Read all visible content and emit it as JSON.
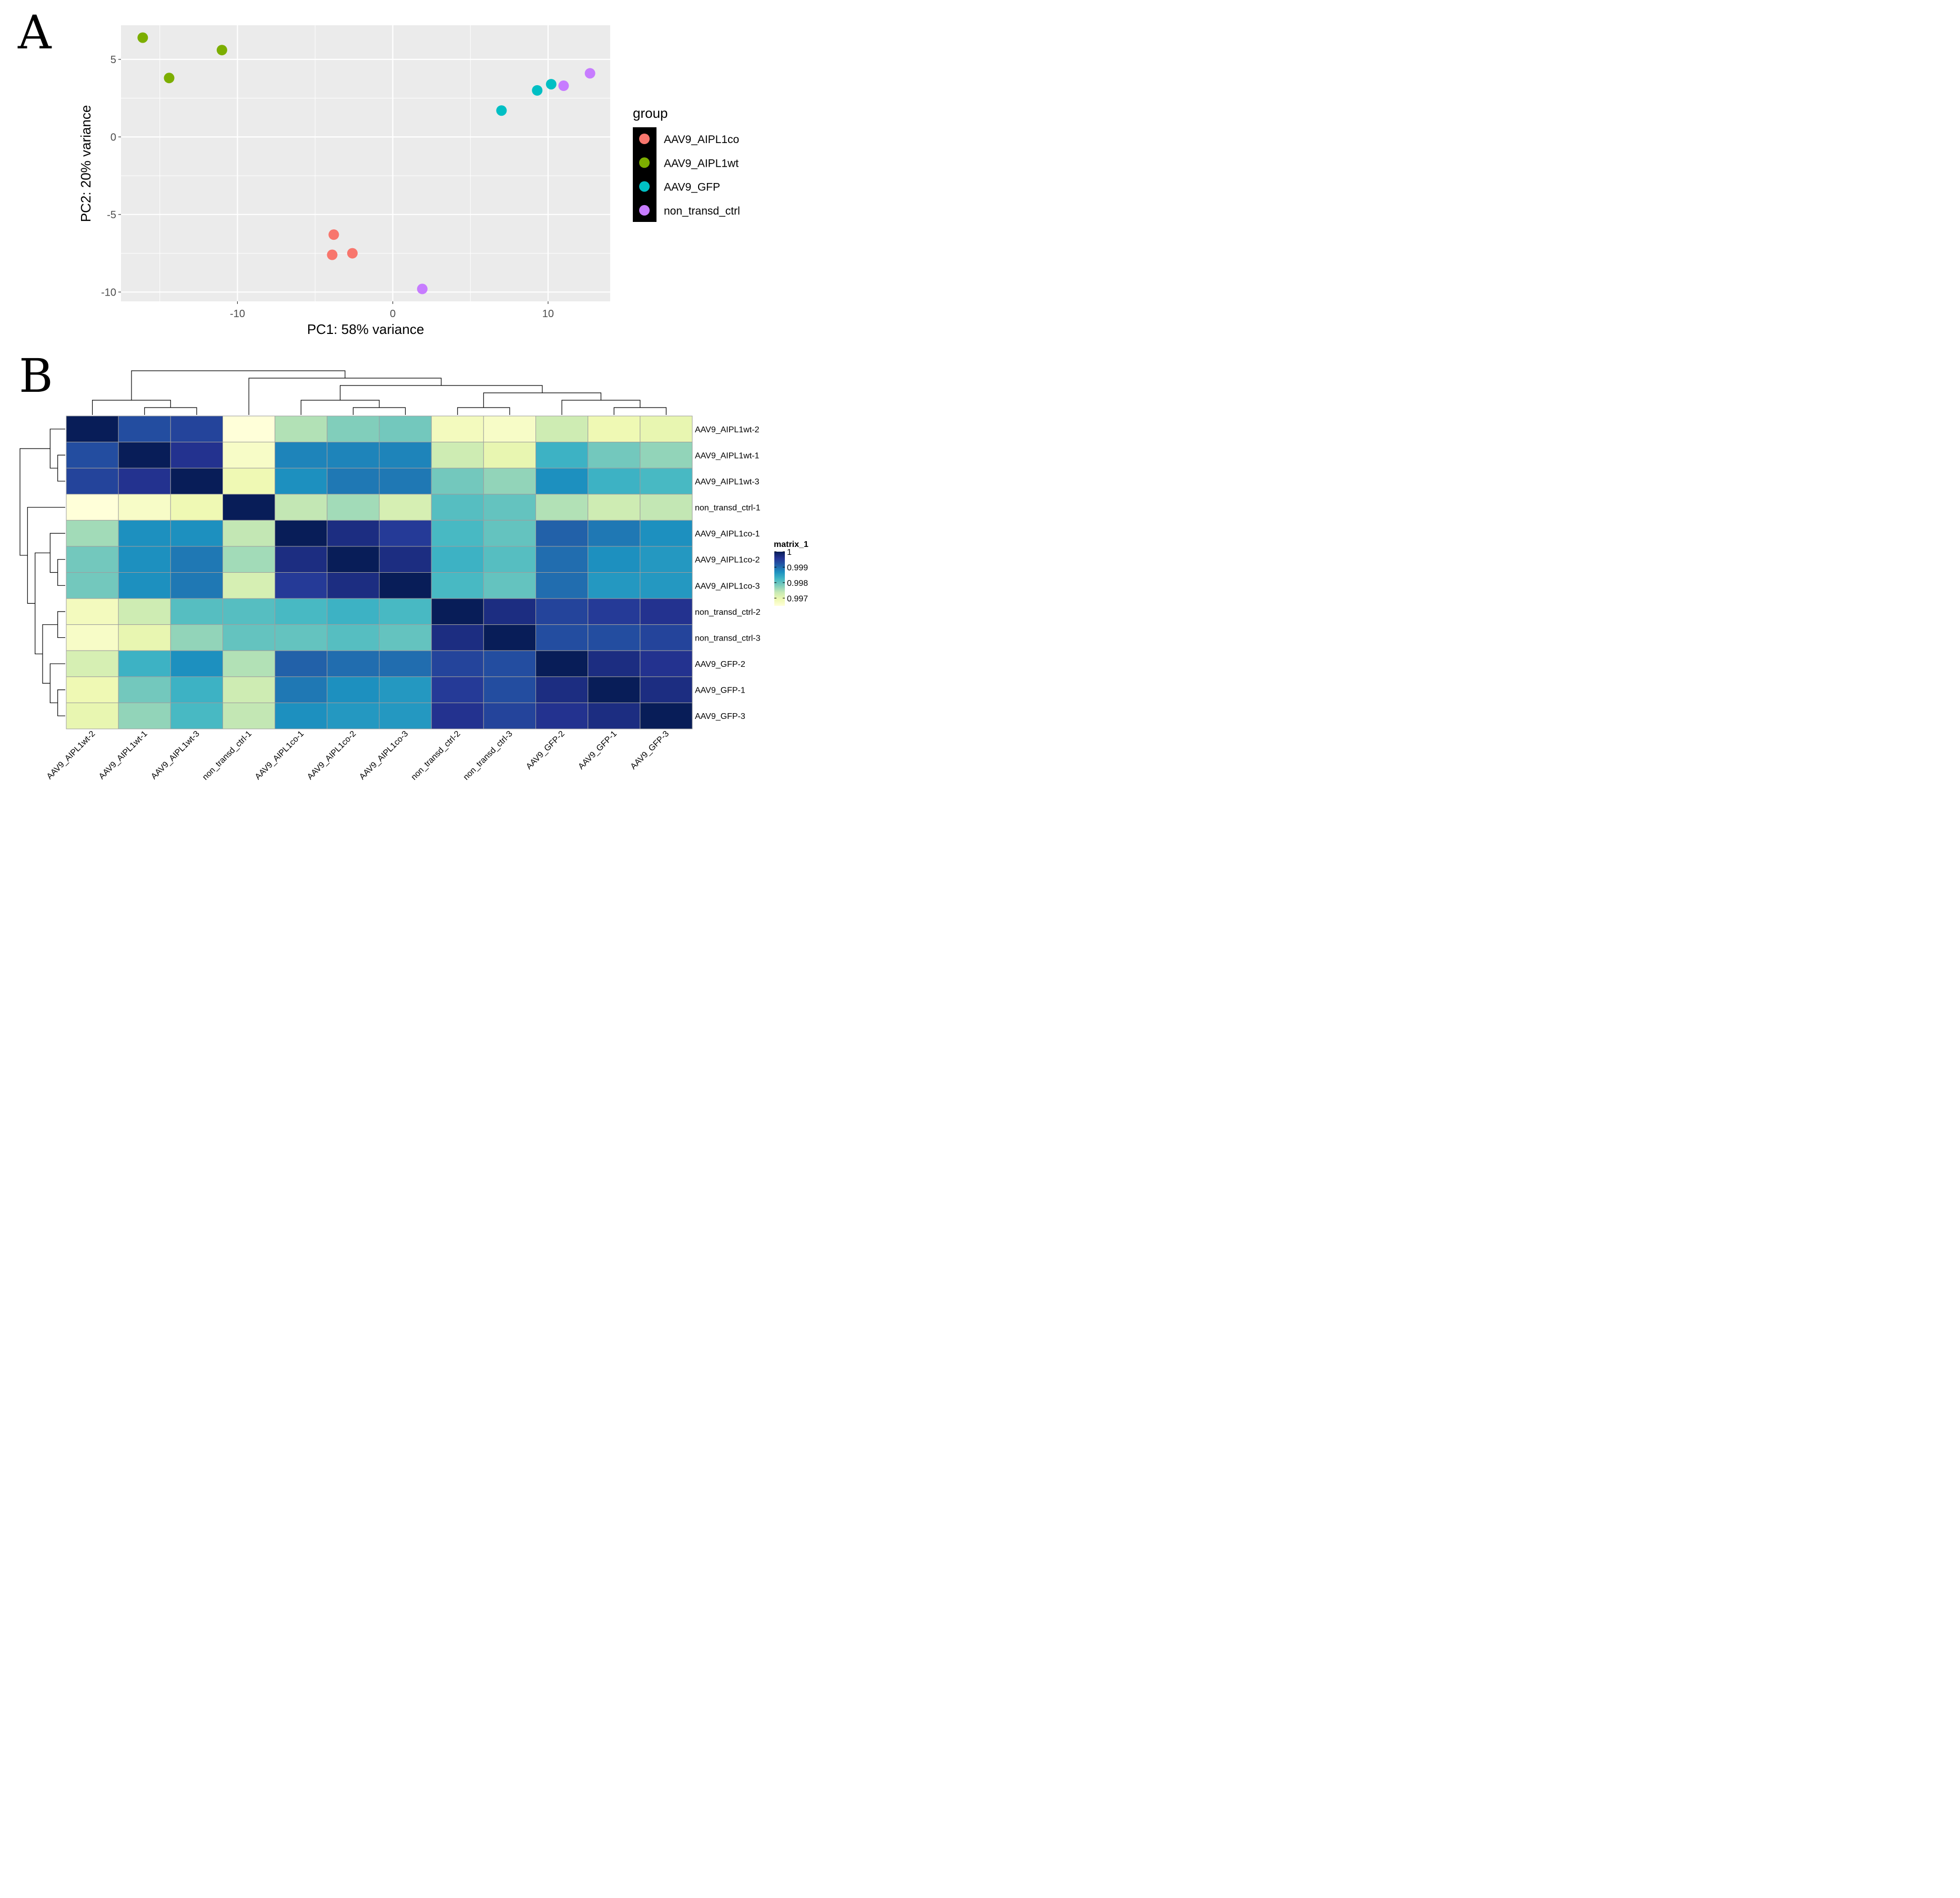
{
  "panels": {
    "a_letter": "A",
    "b_letter": "B"
  },
  "colors": {
    "AAV9_AIPL1co": "#F8766D",
    "AAV9_AIPL1wt": "#7CAE00",
    "AAV9_GFP": "#00BFC4",
    "non_transd_ctrl": "#C77CFF",
    "panel_bg": "#EBEBEB"
  },
  "chart_data": [
    {
      "type": "scatter",
      "title": "",
      "xlabel": "PC1: 58% variance",
      "ylabel": "PC2: 20% variance",
      "xlim": [
        -17.5,
        14
      ],
      "ylim": [
        -10.6,
        7.2
      ],
      "x_ticks": [
        -10,
        0,
        10
      ],
      "x_tick_labels": [
        "-10",
        "0",
        "10"
      ],
      "y_ticks": [
        5,
        0,
        -5,
        -10
      ],
      "y_tick_labels": [
        "5",
        "0",
        "-5",
        "-10"
      ],
      "legend_title": "group",
      "legend_position": "right",
      "groups": [
        "AAV9_AIPL1co",
        "AAV9_AIPL1wt",
        "AAV9_GFP",
        "non_transd_ctrl"
      ],
      "series": [
        {
          "name": "AAV9_AIPL1co",
          "x": [
            -3.8,
            -3.9,
            -2.6
          ],
          "y": [
            -6.3,
            -7.6,
            -7.5
          ]
        },
        {
          "name": "AAV9_AIPL1wt",
          "x": [
            -16.1,
            -14.4,
            -11.0
          ],
          "y": [
            6.4,
            3.8,
            5.6
          ]
        },
        {
          "name": "AAV9_GFP",
          "x": [
            7.0,
            9.3,
            10.2
          ],
          "y": [
            1.7,
            3.0,
            3.4
          ]
        },
        {
          "name": "non_transd_ctrl",
          "x": [
            11.0,
            12.7,
            1.9
          ],
          "y": [
            3.3,
            4.1,
            -9.8
          ]
        }
      ]
    },
    {
      "type": "heatmap",
      "title": "",
      "legend_title": "matrix_1",
      "legend_position": "right",
      "scale_min": 0.9965,
      "scale_max": 1.0,
      "scale_ticks": [
        1,
        0.999,
        0.998,
        0.997
      ],
      "scale_tick_labels": [
        "1",
        "0.999",
        "0.998",
        "0.997"
      ],
      "row_labels": [
        "AAV9_AIPL1wt-2",
        "AAV9_AIPL1wt-1",
        "AAV9_AIPL1wt-3",
        "non_transd_ctrl-1",
        "AAV9_AIPL1co-1",
        "AAV9_AIPL1co-2",
        "AAV9_AIPL1co-3",
        "non_transd_ctrl-2",
        "non_transd_ctrl-3",
        "AAV9_GFP-2",
        "AAV9_GFP-1",
        "AAV9_GFP-3"
      ],
      "col_labels": [
        "AAV9_AIPL1wt-2",
        "AAV9_AIPL1wt-1",
        "AAV9_AIPL1wt-3",
        "non_transd_ctrl-1",
        "AAV9_AIPL1co-1",
        "AAV9_AIPL1co-2",
        "AAV9_AIPL1co-3",
        "non_transd_ctrl-2",
        "non_transd_ctrl-3",
        "AAV9_GFP-2",
        "AAV9_GFP-1",
        "AAV9_GFP-3"
      ],
      "values": [
        [
          1.0,
          0.9993,
          0.9994,
          0.9965,
          0.9975,
          0.9978,
          0.9979,
          0.9968,
          0.9967,
          0.9973,
          0.9969,
          0.997
        ],
        [
          0.9993,
          1.0,
          0.9996,
          0.9967,
          0.9988,
          0.9988,
          0.9988,
          0.9973,
          0.997,
          0.9983,
          0.9979,
          0.9977
        ],
        [
          0.9994,
          0.9996,
          1.0,
          0.9969,
          0.9987,
          0.9989,
          0.9989,
          0.9979,
          0.9977,
          0.9987,
          0.9983,
          0.9982
        ],
        [
          0.9965,
          0.9967,
          0.9969,
          1.0,
          0.9974,
          0.9976,
          0.9972,
          0.9981,
          0.998,
          0.9975,
          0.9973,
          0.9974
        ],
        [
          0.9976,
          0.9987,
          0.9987,
          0.9974,
          1.0,
          0.9997,
          0.9995,
          0.9982,
          0.998,
          0.9991,
          0.9989,
          0.9987
        ],
        [
          0.9979,
          0.9987,
          0.9989,
          0.9976,
          0.9997,
          1.0,
          0.9997,
          0.9983,
          0.9981,
          0.999,
          0.9987,
          0.9986
        ],
        [
          0.9979,
          0.9987,
          0.9989,
          0.9972,
          0.9995,
          0.9997,
          1.0,
          0.9982,
          0.998,
          0.999,
          0.9986,
          0.9986
        ],
        [
          0.9968,
          0.9973,
          0.9981,
          0.9981,
          0.9982,
          0.9983,
          0.9982,
          1.0,
          0.9997,
          0.9994,
          0.9995,
          0.9996
        ],
        [
          0.9967,
          0.997,
          0.9977,
          0.998,
          0.998,
          0.9981,
          0.998,
          0.9997,
          1.0,
          0.9993,
          0.9993,
          0.9994
        ],
        [
          0.9972,
          0.9983,
          0.9987,
          0.9975,
          0.9991,
          0.999,
          0.999,
          0.9994,
          0.9993,
          1.0,
          0.9997,
          0.9996
        ],
        [
          0.9969,
          0.9979,
          0.9983,
          0.9973,
          0.9989,
          0.9987,
          0.9986,
          0.9995,
          0.9993,
          0.9997,
          1.0,
          0.9997
        ],
        [
          0.997,
          0.9977,
          0.9982,
          0.9974,
          0.9987,
          0.9986,
          0.9986,
          0.9996,
          0.9994,
          0.9996,
          0.9997,
          1.0
        ]
      ],
      "dendrogram_merges": [
        [
          1,
          2
        ],
        [
          0,
          12
        ],
        [
          5,
          6
        ],
        [
          4,
          14
        ],
        [
          10,
          11
        ],
        [
          9,
          16
        ],
        [
          7,
          8
        ],
        [
          18,
          17
        ],
        [
          15,
          19
        ],
        [
          3,
          20
        ],
        [
          13,
          21
        ]
      ]
    }
  ]
}
